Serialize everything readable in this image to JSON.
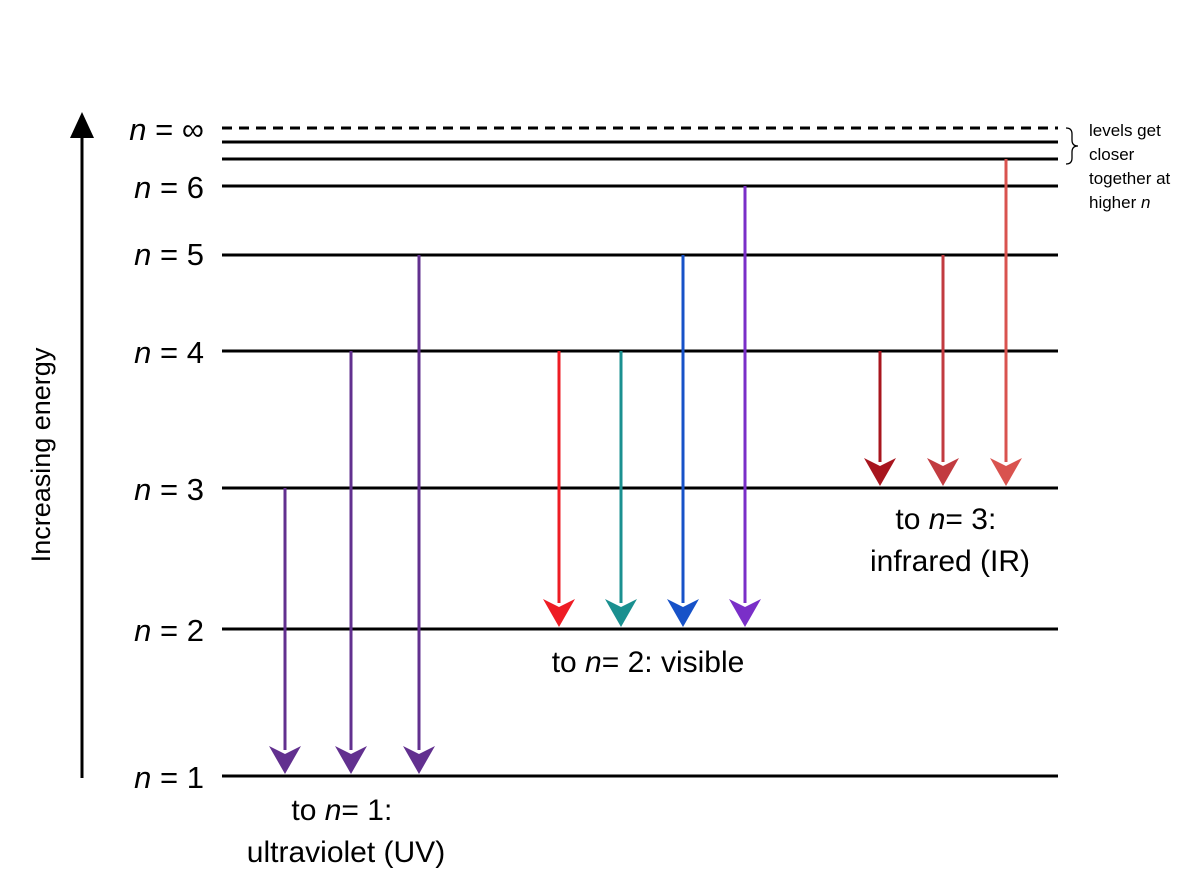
{
  "axis": {
    "label": "Increasing energy"
  },
  "levels": [
    {
      "id": "n1",
      "var": "n",
      "eq": " = ",
      "num": "1"
    },
    {
      "id": "n2",
      "var": "n",
      "eq": " = ",
      "num": "2"
    },
    {
      "id": "n3",
      "var": "n",
      "eq": " = ",
      "num": "3"
    },
    {
      "id": "n4",
      "var": "n",
      "eq": " = ",
      "num": "4"
    },
    {
      "id": "n5",
      "var": "n",
      "eq": " = ",
      "num": "5"
    },
    {
      "id": "n6",
      "var": "n",
      "eq": " = ",
      "num": "6"
    },
    {
      "id": "ninf",
      "var": "n",
      "eq": " = ",
      "num": "∞"
    }
  ],
  "note": {
    "lines": [
      "levels get",
      "closer",
      "together at",
      "higher "
    ],
    "italic": "n"
  },
  "groups": {
    "uv": {
      "line1_pre": "to ",
      "line1_var": "n",
      "line1_post": "= 1:",
      "line2": "ultraviolet (UV)"
    },
    "visible": {
      "pre": "to ",
      "var": "n",
      "post": "= 2: visible"
    },
    "ir": {
      "line1_pre": "to ",
      "line1_var": "n",
      "line1_post": "= 3:",
      "line2": "infrared (IR)"
    }
  },
  "transitions": [
    {
      "from": 3,
      "to": 1,
      "color": "#62308f"
    },
    {
      "from": 4,
      "to": 1,
      "color": "#62308f"
    },
    {
      "from": 5,
      "to": 1,
      "color": "#62308f"
    },
    {
      "from": 4,
      "to": 2,
      "color": "#ee1c24"
    },
    {
      "from": 4,
      "to": 2,
      "color": "#1a9090"
    },
    {
      "from": 5,
      "to": 2,
      "color": "#1752c8"
    },
    {
      "from": 6,
      "to": 2,
      "color": "#7a2fc8"
    },
    {
      "from": 4,
      "to": 3,
      "color": "#a8151e"
    },
    {
      "from": 5,
      "to": 3,
      "color": "#c23b40"
    },
    {
      "from": 7,
      "to": 3,
      "color": "#d9534f"
    }
  ]
}
